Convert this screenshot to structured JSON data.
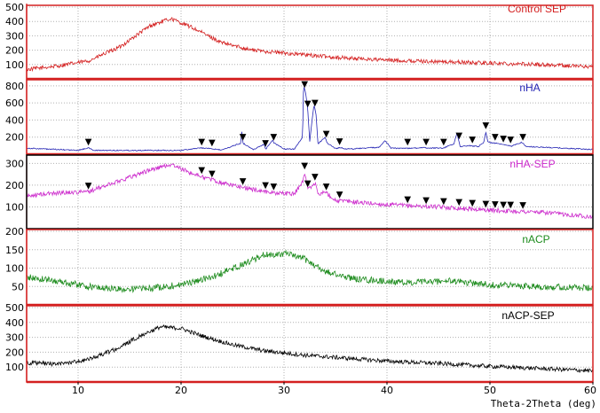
{
  "chart_data": {
    "type": "line",
    "xlabel": "Theta-2Theta (deg)",
    "xlim": [
      5,
      60
    ],
    "x_ticks": [
      10,
      20,
      30,
      40,
      50,
      60
    ],
    "x_tick_labels": [
      "10",
      "20",
      "30",
      "40",
      "50",
      "60"
    ],
    "grid": true,
    "marker_symbol": "▼",
    "panels": [
      {
        "name": "Control SEP",
        "color": "#d42020",
        "border_color": "#d42020",
        "ylim": [
          0,
          500
        ],
        "y_ticks": [
          100,
          200,
          300,
          400,
          500
        ],
        "y_tick_labels": [
          "100",
          "200",
          "300",
          "400",
          "500"
        ],
        "noise": 14,
        "points": [
          [
            5,
            65
          ],
          [
            8,
            90
          ],
          [
            11,
            125
          ],
          [
            14,
            220
          ],
          [
            17,
            370
          ],
          [
            19,
            420
          ],
          [
            21,
            360
          ],
          [
            24,
            250
          ],
          [
            27,
            200
          ],
          [
            30,
            180
          ],
          [
            35,
            150
          ],
          [
            40,
            130
          ],
          [
            45,
            120
          ],
          [
            50,
            110
          ],
          [
            55,
            100
          ],
          [
            60,
            85
          ]
        ],
        "markers": []
      },
      {
        "name": "nHA",
        "color": "#2424b4",
        "border_color": "#d42020",
        "ylim": [
          0,
          850
        ],
        "y_ticks": [
          200,
          400,
          600,
          800
        ],
        "y_tick_labels": [
          "200",
          "400",
          "600",
          "800"
        ],
        "noise": 6,
        "points": [
          [
            5,
            70
          ],
          [
            10,
            45
          ],
          [
            11,
            75
          ],
          [
            11.5,
            45
          ],
          [
            20,
            45
          ],
          [
            21.9,
            75
          ],
          [
            22.8,
            65
          ],
          [
            24,
            50
          ],
          [
            25.8,
            130
          ],
          [
            25.9,
            265
          ],
          [
            26,
            130
          ],
          [
            27,
            55
          ],
          [
            28.1,
            115
          ],
          [
            28.2,
            55
          ],
          [
            28.9,
            170
          ],
          [
            29,
            130
          ],
          [
            29.4,
            110
          ],
          [
            30,
            60
          ],
          [
            31,
            60
          ],
          [
            31.8,
            200
          ],
          [
            31.9,
            800
          ],
          [
            32.1,
            720
          ],
          [
            32.3,
            520
          ],
          [
            32.5,
            150
          ],
          [
            32.9,
            580
          ],
          [
            33.1,
            480
          ],
          [
            33.3,
            120
          ],
          [
            34,
            200
          ],
          [
            34.2,
            130
          ],
          [
            35,
            65
          ],
          [
            35.5,
            80
          ],
          [
            36,
            60
          ],
          [
            39.2,
            80
          ],
          [
            39.8,
            160
          ],
          [
            40.4,
            70
          ],
          [
            42,
            70
          ],
          [
            43.6,
            75
          ],
          [
            45.4,
            70
          ],
          [
            46.5,
            120
          ],
          [
            46.8,
            250
          ],
          [
            47.1,
            90
          ],
          [
            48.1,
            100
          ],
          [
            48.9,
            90
          ],
          [
            49.4,
            140
          ],
          [
            49.6,
            265
          ],
          [
            49.8,
            140
          ],
          [
            50.5,
            130
          ],
          [
            51.3,
            110
          ],
          [
            52.1,
            95
          ],
          [
            53.1,
            140
          ],
          [
            53.5,
            90
          ],
          [
            60,
            55
          ]
        ],
        "markers": [
          11,
          22,
          23,
          26,
          28.2,
          29,
          32,
          32.3,
          33,
          34.1,
          35.4,
          42,
          43.8,
          45.5,
          47,
          48.3,
          49.6,
          50.5,
          51.3,
          52,
          53.2
        ]
      },
      {
        "name": "nHA-SEP",
        "color": "#cc2acc",
        "border_color": "#000000",
        "ylim": [
          0,
          330
        ],
        "y_ticks": [
          100,
          200,
          300
        ],
        "y_tick_labels": [
          "100",
          "200",
          "300"
        ],
        "noise": 10,
        "points": [
          [
            5,
            150
          ],
          [
            8,
            165
          ],
          [
            11,
            170
          ],
          [
            14,
            220
          ],
          [
            17,
            270
          ],
          [
            19,
            295
          ],
          [
            21,
            255
          ],
          [
            24,
            210
          ],
          [
            27,
            180
          ],
          [
            29,
            165
          ],
          [
            31,
            160
          ],
          [
            31.8,
            215
          ],
          [
            32,
            260
          ],
          [
            32.3,
            180
          ],
          [
            33,
            210
          ],
          [
            33.4,
            155
          ],
          [
            34,
            170
          ],
          [
            35,
            130
          ],
          [
            40,
            110
          ],
          [
            45,
            100
          ],
          [
            50,
            85
          ],
          [
            55,
            75
          ],
          [
            60,
            55
          ]
        ],
        "markers": [
          11,
          22,
          23,
          26,
          28.2,
          29,
          32,
          32.3,
          33,
          34.1,
          35.4,
          42,
          43.8,
          45.5,
          47,
          48.3,
          49.6,
          50.5,
          51.3,
          52,
          53.2
        ]
      },
      {
        "name": "nACP",
        "color": "#1e8c1e",
        "border_color": "#d42020",
        "ylim": [
          0,
          200
        ],
        "y_ticks": [
          50,
          100,
          150,
          200
        ],
        "y_tick_labels": [
          "50",
          "100",
          "150",
          "200"
        ],
        "noise": 9,
        "points": [
          [
            5,
            75
          ],
          [
            8,
            65
          ],
          [
            11,
            50
          ],
          [
            14,
            42
          ],
          [
            17,
            45
          ],
          [
            20,
            55
          ],
          [
            23,
            75
          ],
          [
            26,
            110
          ],
          [
            28,
            135
          ],
          [
            30,
            140
          ],
          [
            32,
            125
          ],
          [
            34,
            90
          ],
          [
            37,
            70
          ],
          [
            42,
            60
          ],
          [
            46,
            65
          ],
          [
            50,
            55
          ],
          [
            55,
            50
          ],
          [
            60,
            45
          ]
        ],
        "markers": []
      },
      {
        "name": "nACP-SEP",
        "color": "#000000",
        "border_color": "#d42020",
        "ylim": [
          0,
          500
        ],
        "y_ticks": [
          100,
          200,
          300,
          400,
          500
        ],
        "y_tick_labels": [
          "100",
          "200",
          "300",
          "400",
          "500"
        ],
        "noise": 14,
        "points": [
          [
            5,
            130
          ],
          [
            8,
            120
          ],
          [
            11,
            150
          ],
          [
            14,
            230
          ],
          [
            16,
            310
          ],
          [
            18,
            370
          ],
          [
            20,
            360
          ],
          [
            22,
            310
          ],
          [
            25,
            250
          ],
          [
            28,
            210
          ],
          [
            32,
            180
          ],
          [
            36,
            160
          ],
          [
            40,
            140
          ],
          [
            45,
            125
          ],
          [
            50,
            105
          ],
          [
            55,
            90
          ],
          [
            60,
            75
          ]
        ],
        "markers": []
      }
    ]
  }
}
